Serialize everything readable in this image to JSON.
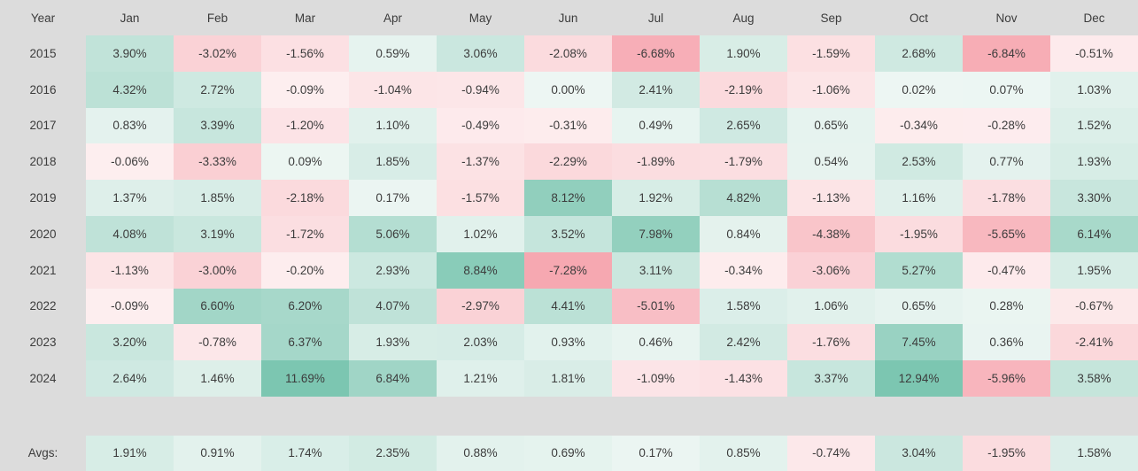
{
  "page": {
    "background": "#dcdcdc",
    "text_color": "#3c3c3c"
  },
  "colormap": {
    "positive_max": "#7cc6b1",
    "positive_zero": "#edf6f3",
    "negative_max": "#f48e9a",
    "negative_zero": "#fdeff0",
    "cap_abs_percent": 10
  },
  "chart_data": {
    "type": "heatmap",
    "title": "",
    "value_suffix": "%",
    "columns": [
      "Year",
      "Jan",
      "Feb",
      "Mar",
      "Apr",
      "May",
      "Jun",
      "Jul",
      "Aug",
      "Sep",
      "Oct",
      "Nov",
      "Dec"
    ],
    "rows": [
      {
        "year": "2015",
        "values": [
          3.9,
          -3.02,
          -1.56,
          0.59,
          3.06,
          -2.08,
          -6.68,
          1.9,
          -1.59,
          2.68,
          -6.84,
          -0.51
        ]
      },
      {
        "year": "2016",
        "values": [
          4.32,
          2.72,
          -0.09,
          -1.04,
          -0.94,
          0.0,
          2.41,
          -2.19,
          -1.06,
          0.02,
          0.07,
          1.03
        ]
      },
      {
        "year": "2017",
        "values": [
          0.83,
          3.39,
          -1.2,
          1.1,
          -0.49,
          -0.31,
          0.49,
          2.65,
          0.65,
          -0.34,
          -0.28,
          1.52
        ]
      },
      {
        "year": "2018",
        "values": [
          -0.06,
          -3.33,
          0.09,
          1.85,
          -1.37,
          -2.29,
          -1.89,
          -1.79,
          0.54,
          2.53,
          0.77,
          1.93
        ]
      },
      {
        "year": "2019",
        "values": [
          1.37,
          1.85,
          -2.18,
          0.17,
          -1.57,
          8.12,
          1.92,
          4.82,
          -1.13,
          1.16,
          -1.78,
          3.3
        ]
      },
      {
        "year": "2020",
        "values": [
          4.08,
          3.19,
          -1.72,
          5.06,
          1.02,
          3.52,
          7.98,
          0.84,
          -4.38,
          -1.95,
          -5.65,
          6.14
        ]
      },
      {
        "year": "2021",
        "values": [
          -1.13,
          -3.0,
          -0.2,
          2.93,
          8.84,
          -7.28,
          3.11,
          -0.34,
          -3.06,
          5.27,
          -0.47,
          1.95
        ]
      },
      {
        "year": "2022",
        "values": [
          -0.09,
          6.6,
          6.2,
          4.07,
          -2.97,
          4.41,
          -5.01,
          1.58,
          1.06,
          0.65,
          0.28,
          -0.67
        ]
      },
      {
        "year": "2023",
        "values": [
          3.2,
          -0.78,
          6.37,
          1.93,
          2.03,
          0.93,
          0.46,
          2.42,
          -1.76,
          7.45,
          0.36,
          -2.41
        ]
      },
      {
        "year": "2024",
        "values": [
          2.64,
          1.46,
          11.69,
          6.84,
          1.21,
          1.81,
          -1.09,
          -1.43,
          3.37,
          12.94,
          -5.96,
          3.58
        ]
      }
    ],
    "averages_row": {
      "label": "Avgs:",
      "values": [
        1.91,
        0.91,
        1.74,
        2.35,
        0.88,
        0.69,
        0.17,
        0.85,
        -0.74,
        3.04,
        -1.95,
        1.58
      ]
    }
  }
}
